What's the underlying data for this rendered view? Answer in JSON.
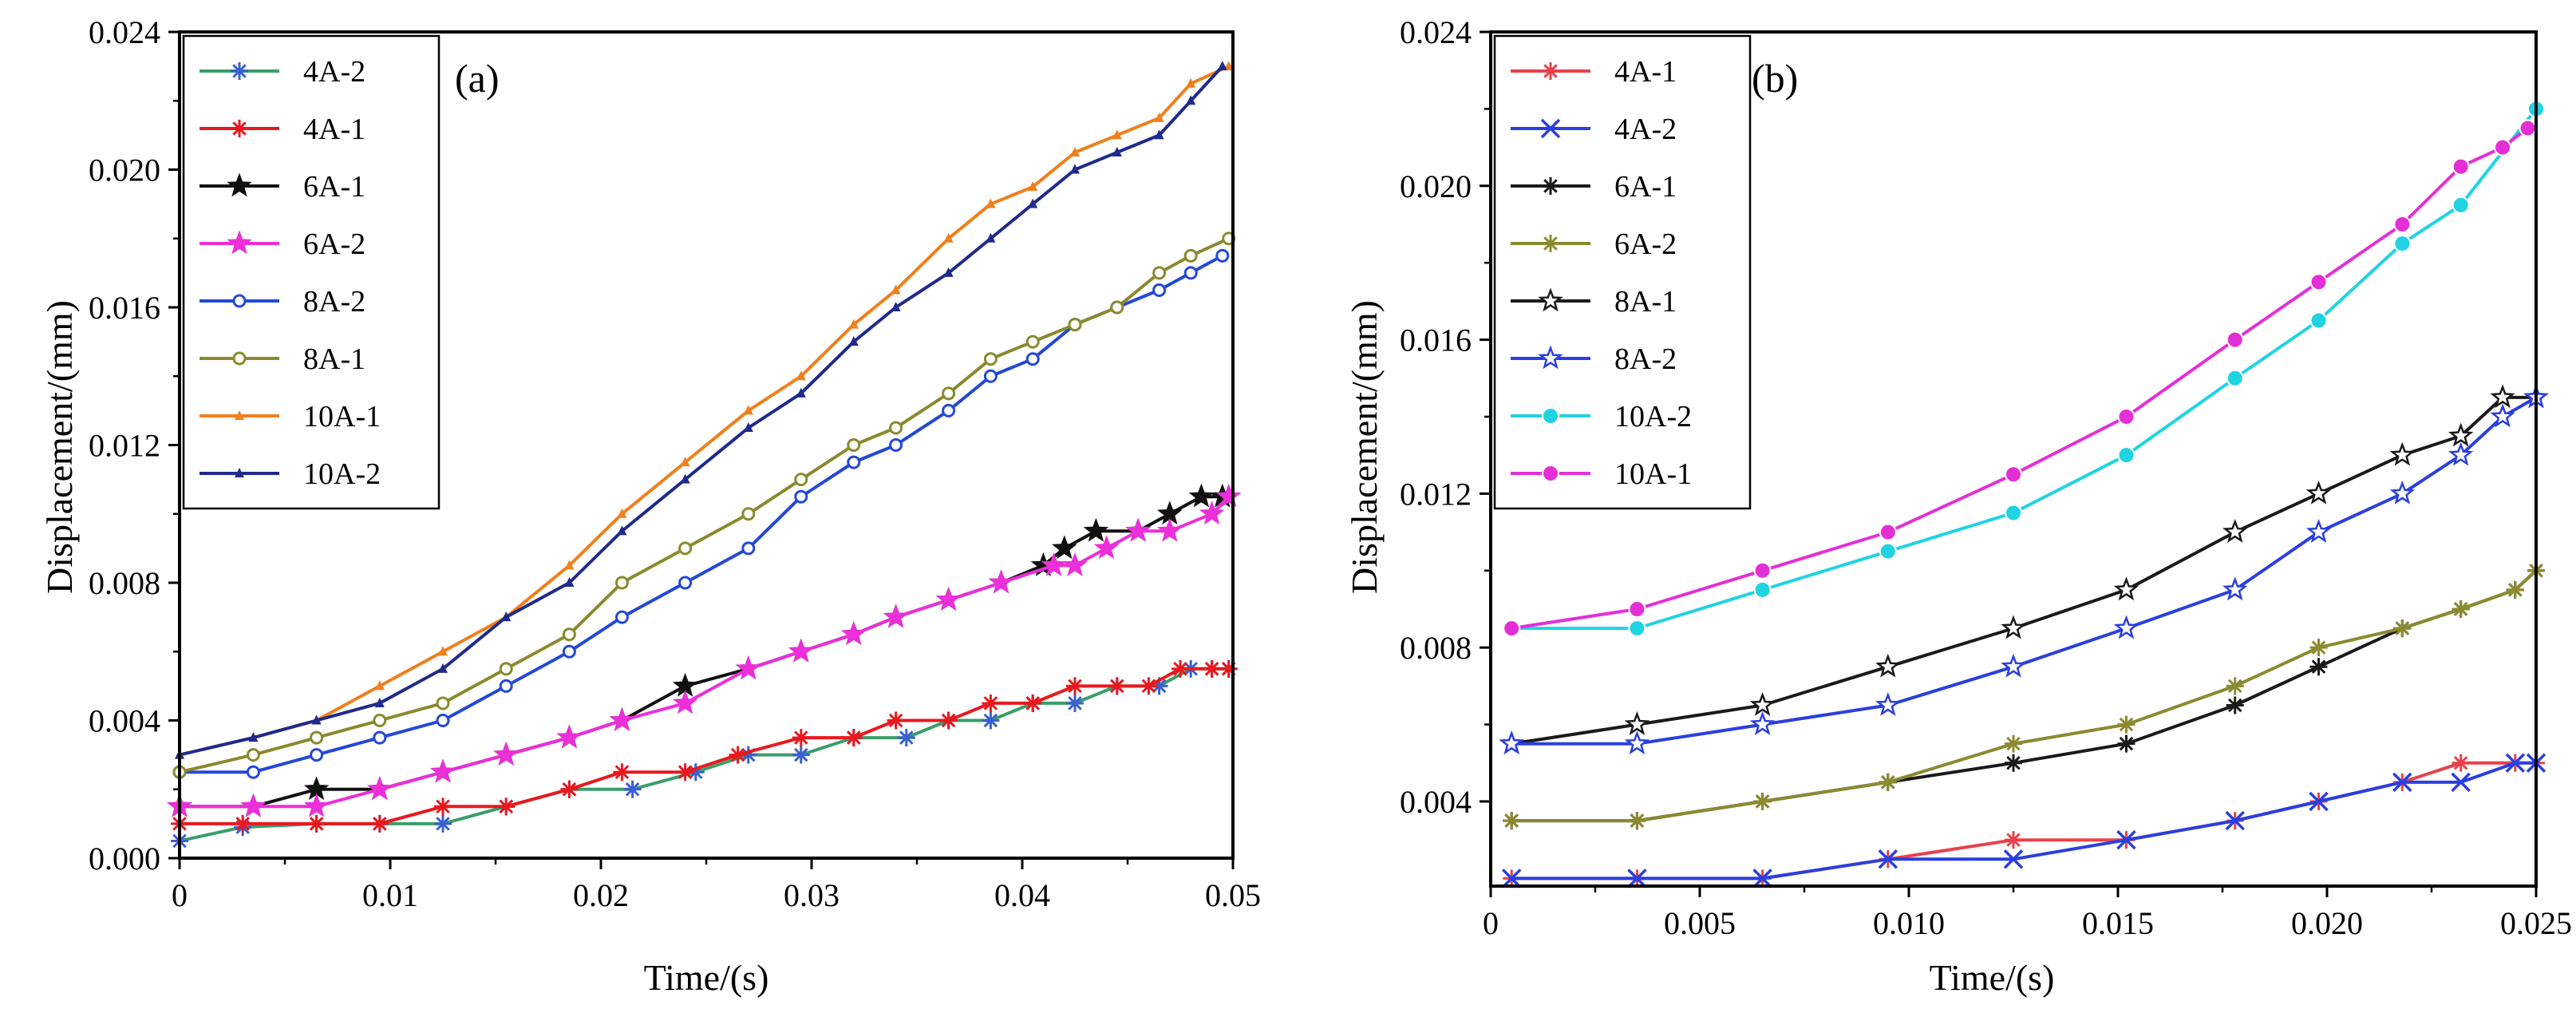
{
  "chart_data": [
    {
      "type": "line",
      "panel_label": "(a)",
      "xlabel": "Time/(s)",
      "ylabel": "Displacement/(mm)",
      "xlim": [
        0,
        0.05
      ],
      "ylim": [
        0,
        0.024
      ],
      "x_ticks": [
        0,
        0.01,
        0.02,
        0.03,
        0.04,
        0.05
      ],
      "x_tick_labels": [
        "0",
        "0.01",
        "0.02",
        "0.03",
        "0.04",
        "0.05"
      ],
      "y_ticks": [
        0,
        0.004,
        0.008,
        0.012,
        0.016,
        0.02,
        0.024
      ],
      "y_tick_labels": [
        "0.000",
        "0.004",
        "0.008",
        "0.012",
        "0.016",
        "0.020",
        "0.024"
      ],
      "legend_position": "top-left",
      "series": [
        {
          "name": "4A-2",
          "color": "#3a9e6a",
          "marker_color": "#3a5fd0",
          "marker": "asterisk",
          "x": [
            0,
            0.003,
            0.0065,
            0.0095,
            0.0125,
            0.0155,
            0.0185,
            0.0215,
            0.0245,
            0.027,
            0.0295,
            0.032,
            0.0345,
            0.0365,
            0.0385,
            0.0405,
            0.0425,
            0.0445,
            0.0465,
            0.048,
            0.049,
            0.0498
          ],
          "y": [
            0.0005,
            0.0009,
            0.001,
            0.001,
            0.001,
            0.0015,
            0.002,
            0.002,
            0.0025,
            0.003,
            0.003,
            0.0035,
            0.0035,
            0.004,
            0.004,
            0.0045,
            0.0045,
            0.005,
            0.005,
            0.0055,
            0.0055,
            0.0055
          ]
        },
        {
          "name": "4A-1",
          "color": "#e8191e",
          "marker_color": "#e8191e",
          "marker": "asterisk",
          "x": [
            0,
            0.003,
            0.0065,
            0.0095,
            0.0125,
            0.0155,
            0.0185,
            0.021,
            0.024,
            0.0265,
            0.0295,
            0.032,
            0.034,
            0.0365,
            0.0385,
            0.0405,
            0.0425,
            0.0445,
            0.046,
            0.0475,
            0.049,
            0.0498
          ],
          "y": [
            0.001,
            0.001,
            0.001,
            0.001,
            0.0015,
            0.0015,
            0.002,
            0.0025,
            0.0025,
            0.003,
            0.0035,
            0.0035,
            0.004,
            0.004,
            0.0045,
            0.0045,
            0.005,
            0.005,
            0.005,
            0.0055,
            0.0055,
            0.0055
          ]
        },
        {
          "name": "6A-1",
          "color": "#111111",
          "marker_color": "#111111",
          "marker": "star",
          "x": [
            0,
            0.0035,
            0.0065,
            0.0095,
            0.0125,
            0.0155,
            0.0185,
            0.021,
            0.024,
            0.027,
            0.0295,
            0.032,
            0.034,
            0.0365,
            0.039,
            0.041,
            0.042,
            0.0435,
            0.0455,
            0.047,
            0.0485,
            0.0495
          ],
          "y": [
            0.0015,
            0.0015,
            0.002,
            0.002,
            0.0025,
            0.003,
            0.0035,
            0.004,
            0.005,
            0.0055,
            0.006,
            0.0065,
            0.007,
            0.0075,
            0.008,
            0.0085,
            0.009,
            0.0095,
            0.0095,
            0.01,
            0.0105,
            0.0105
          ]
        },
        {
          "name": "6A-2",
          "color": "#ec2fd8",
          "marker_color": "#ec2fd8",
          "marker": "star",
          "x": [
            0,
            0.0035,
            0.0065,
            0.0095,
            0.0125,
            0.0155,
            0.0185,
            0.021,
            0.024,
            0.027,
            0.0295,
            0.032,
            0.034,
            0.0365,
            0.039,
            0.0415,
            0.0425,
            0.044,
            0.0455,
            0.047,
            0.049,
            0.0498
          ],
          "y": [
            0.0015,
            0.0015,
            0.0015,
            0.002,
            0.0025,
            0.003,
            0.0035,
            0.004,
            0.0045,
            0.0055,
            0.006,
            0.0065,
            0.007,
            0.0075,
            0.008,
            0.0085,
            0.0085,
            0.009,
            0.0095,
            0.0095,
            0.01,
            0.0105
          ]
        },
        {
          "name": "8A-2",
          "color": "#2348d8",
          "marker_color": "#2348d8",
          "marker": "open-circle",
          "x": [
            0,
            0.0035,
            0.0065,
            0.0095,
            0.0125,
            0.0155,
            0.0185,
            0.021,
            0.024,
            0.027,
            0.0295,
            0.032,
            0.034,
            0.0365,
            0.0385,
            0.0405,
            0.0425,
            0.0445,
            0.0465,
            0.048,
            0.0495
          ],
          "y": [
            0.0025,
            0.0025,
            0.003,
            0.0035,
            0.004,
            0.005,
            0.006,
            0.007,
            0.008,
            0.009,
            0.0105,
            0.0115,
            0.012,
            0.013,
            0.014,
            0.0145,
            0.0155,
            0.016,
            0.0165,
            0.017,
            0.0175
          ]
        },
        {
          "name": "8A-1",
          "color": "#8a8a2e",
          "marker_color": "#8a8a2e",
          "marker": "open-circle",
          "x": [
            0,
            0.0035,
            0.0065,
            0.0095,
            0.0125,
            0.0155,
            0.0185,
            0.021,
            0.024,
            0.027,
            0.0295,
            0.032,
            0.034,
            0.0365,
            0.0385,
            0.0405,
            0.0425,
            0.0445,
            0.0465,
            0.048,
            0.0498
          ],
          "y": [
            0.0025,
            0.003,
            0.0035,
            0.004,
            0.0045,
            0.0055,
            0.0065,
            0.008,
            0.009,
            0.01,
            0.011,
            0.012,
            0.0125,
            0.0135,
            0.0145,
            0.015,
            0.0155,
            0.016,
            0.017,
            0.0175,
            0.018
          ]
        },
        {
          "name": "10A-1",
          "color": "#f07f1c",
          "marker_color": "#f07f1c",
          "marker": "small-triangle",
          "x": [
            0,
            0.0035,
            0.0065,
            0.0095,
            0.0125,
            0.0155,
            0.0185,
            0.021,
            0.024,
            0.027,
            0.0295,
            0.032,
            0.034,
            0.0365,
            0.0385,
            0.0405,
            0.0425,
            0.0445,
            0.0465,
            0.048,
            0.0498
          ],
          "y": [
            0.003,
            0.0035,
            0.004,
            0.005,
            0.006,
            0.007,
            0.0085,
            0.01,
            0.0115,
            0.013,
            0.014,
            0.0155,
            0.0165,
            0.018,
            0.019,
            0.0195,
            0.0205,
            0.021,
            0.0215,
            0.0225,
            0.023
          ]
        },
        {
          "name": "10A-2",
          "color": "#1f2a8c",
          "marker_color": "#1f2a8c",
          "marker": "small-triangle",
          "x": [
            0,
            0.0035,
            0.0065,
            0.0095,
            0.0125,
            0.0155,
            0.0185,
            0.021,
            0.024,
            0.027,
            0.0295,
            0.032,
            0.034,
            0.0365,
            0.0385,
            0.0405,
            0.0425,
            0.0445,
            0.0465,
            0.048,
            0.0495
          ],
          "y": [
            0.003,
            0.0035,
            0.004,
            0.0045,
            0.0055,
            0.007,
            0.008,
            0.0095,
            0.011,
            0.0125,
            0.0135,
            0.015,
            0.016,
            0.017,
            0.018,
            0.019,
            0.02,
            0.0205,
            0.021,
            0.022,
            0.023
          ]
        }
      ]
    },
    {
      "type": "line",
      "panel_label": "(b)",
      "xlabel": "Time/(s)",
      "ylabel": "Displacement/(mm)",
      "xlim": [
        0,
        0.025
      ],
      "ylim": [
        0.0018,
        0.024
      ],
      "x_ticks": [
        0,
        0.005,
        0.01,
        0.015,
        0.02,
        0.025
      ],
      "x_tick_labels": [
        "0",
        "0.005",
        "0.010",
        "0.015",
        "0.020",
        "0.025"
      ],
      "y_ticks": [
        0.004,
        0.008,
        0.012,
        0.016,
        0.02,
        0.024
      ],
      "y_tick_labels": [
        "0.004",
        "0.008",
        "0.012",
        "0.016",
        "0.020",
        "0.024"
      ],
      "legend_position": "top-left",
      "series": [
        {
          "name": "4A-1",
          "color": "#e8414a",
          "marker_color": "#e8414a",
          "marker": "asterisk",
          "x": [
            0.0005,
            0.0035,
            0.0065,
            0.0095,
            0.0125,
            0.0152,
            0.0178,
            0.0198,
            0.0218,
            0.0232,
            0.0245,
            0.025
          ],
          "y": [
            0.002,
            0.002,
            0.002,
            0.0025,
            0.003,
            0.003,
            0.0035,
            0.004,
            0.0045,
            0.005,
            0.005,
            0.005
          ]
        },
        {
          "name": "4A-2",
          "color": "#2a3fe0",
          "marker_color": "#2a3fe0",
          "marker": "x-cross",
          "x": [
            0.0005,
            0.0035,
            0.0065,
            0.0095,
            0.0125,
            0.0152,
            0.0178,
            0.0198,
            0.0218,
            0.0232,
            0.0245,
            0.025
          ],
          "y": [
            0.002,
            0.002,
            0.002,
            0.0025,
            0.0025,
            0.003,
            0.0035,
            0.004,
            0.0045,
            0.0045,
            0.005,
            0.005
          ]
        },
        {
          "name": "6A-1",
          "color": "#1a1a1a",
          "marker_color": "#1a1a1a",
          "marker": "asterisk",
          "x": [
            0.0005,
            0.0035,
            0.0065,
            0.0095,
            0.0125,
            0.0152,
            0.0178,
            0.0198,
            0.0218,
            0.0232,
            0.0245,
            0.025
          ],
          "y": [
            0.0035,
            0.0035,
            0.004,
            0.0045,
            0.005,
            0.0055,
            0.0065,
            0.0075,
            0.0085,
            0.009,
            0.0095,
            0.01
          ]
        },
        {
          "name": "6A-2",
          "color": "#8c8a30",
          "marker_color": "#8c8a30",
          "marker": "asterisk",
          "x": [
            0.0005,
            0.0035,
            0.0065,
            0.0095,
            0.0125,
            0.0152,
            0.0178,
            0.0198,
            0.0218,
            0.0232,
            0.0245,
            0.025
          ],
          "y": [
            0.0035,
            0.0035,
            0.004,
            0.0045,
            0.0055,
            0.006,
            0.007,
            0.008,
            0.0085,
            0.009,
            0.0095,
            0.01
          ]
        },
        {
          "name": "8A-1",
          "color": "#1a1a1a",
          "marker_color": "#1a1a1a",
          "marker": "open-star",
          "x": [
            0.0005,
            0.0035,
            0.0065,
            0.0095,
            0.0125,
            0.0152,
            0.0178,
            0.0198,
            0.0218,
            0.0232,
            0.0242,
            0.025
          ],
          "y": [
            0.0055,
            0.006,
            0.0065,
            0.0075,
            0.0085,
            0.0095,
            0.011,
            0.012,
            0.013,
            0.0135,
            0.0145,
            0.0145
          ]
        },
        {
          "name": "8A-2",
          "color": "#2a3fe0",
          "marker_color": "#2a3fe0",
          "marker": "open-star",
          "x": [
            0.0005,
            0.0035,
            0.0065,
            0.0095,
            0.0125,
            0.0152,
            0.0178,
            0.0198,
            0.0218,
            0.0232,
            0.0242,
            0.025
          ],
          "y": [
            0.0055,
            0.0055,
            0.006,
            0.0065,
            0.0075,
            0.0085,
            0.0095,
            0.011,
            0.012,
            0.013,
            0.014,
            0.0145
          ]
        },
        {
          "name": "10A-2",
          "color": "#1fd3e3",
          "marker_color": "#1fd3e3",
          "marker": "filled-circle",
          "x": [
            0.0005,
            0.0035,
            0.0065,
            0.0095,
            0.0125,
            0.0152,
            0.0178,
            0.0198,
            0.0218,
            0.0232,
            0.025
          ],
          "y": [
            0.0085,
            0.0085,
            0.0095,
            0.0105,
            0.0115,
            0.013,
            0.015,
            0.0165,
            0.0185,
            0.0195,
            0.022
          ]
        },
        {
          "name": "10A-1",
          "color": "#e42fd6",
          "marker_color": "#e42fd6",
          "marker": "filled-circle",
          "x": [
            0.0005,
            0.0035,
            0.0065,
            0.0095,
            0.0125,
            0.0152,
            0.0178,
            0.0198,
            0.0218,
            0.0232,
            0.0242,
            0.0248
          ],
          "y": [
            0.0085,
            0.009,
            0.01,
            0.011,
            0.0125,
            0.014,
            0.016,
            0.0175,
            0.019,
            0.0205,
            0.021,
            0.0215
          ]
        }
      ]
    }
  ]
}
